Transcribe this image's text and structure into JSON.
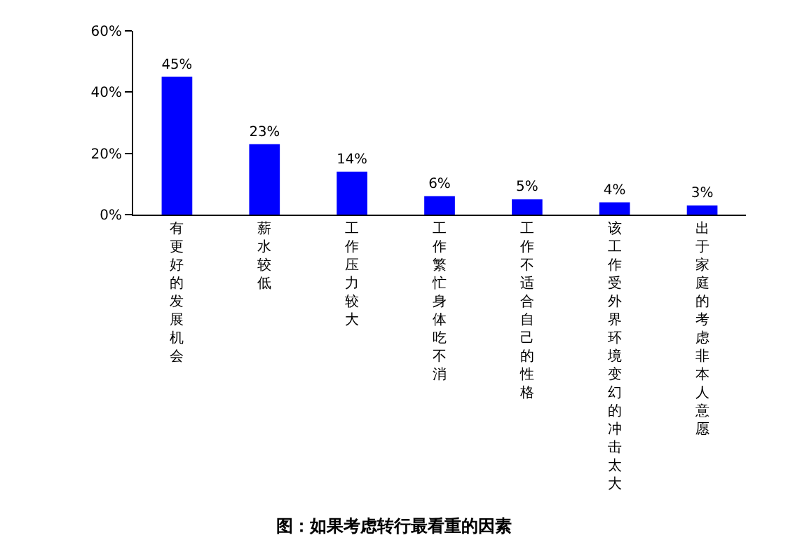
{
  "chart_data": {
    "type": "bar",
    "title": "图：如果考虑转行最看重的因素",
    "categories": [
      "有更好的发展机会",
      "薪水较低",
      "工作压力较大",
      "工作繁忙身体吃不消",
      "工作不适合自己的性格",
      "该工作受外界环境变幻的冲击太大",
      "出于家庭的考虑非本人意愿"
    ],
    "values": [
      45,
      23,
      14,
      6,
      5,
      4,
      3
    ],
    "value_labels": [
      "45%",
      "23%",
      "14%",
      "6%",
      "5%",
      "4%",
      "3%"
    ],
    "color": "#0000ff",
    "ylim": [
      0,
      60
    ],
    "yticks": [
      {
        "value": 0,
        "label": "0%"
      },
      {
        "value": 20,
        "label": "20%"
      },
      {
        "value": 40,
        "label": "40%"
      },
      {
        "value": 60,
        "label": "60%"
      }
    ],
    "legend": false
  }
}
